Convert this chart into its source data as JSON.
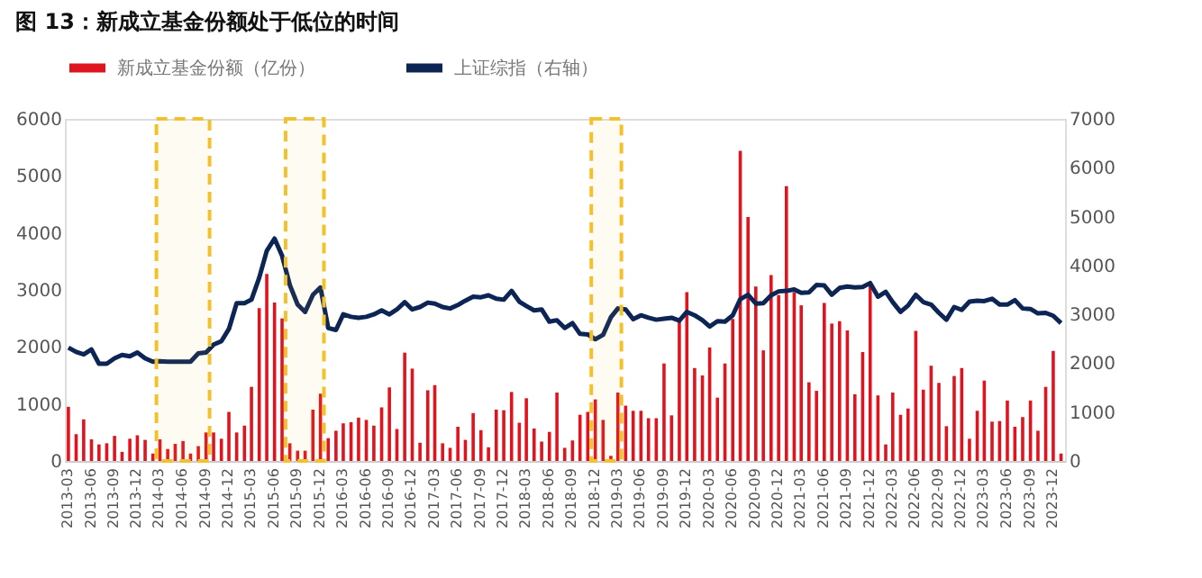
{
  "chart_data": {
    "type": "bar",
    "title": "图 13：新成立基金份额处于低位的时间",
    "x": [
      "2013-03",
      "2013-04",
      "2013-05",
      "2013-06",
      "2013-07",
      "2013-08",
      "2013-09",
      "2013-10",
      "2013-11",
      "2013-12",
      "2014-01",
      "2014-02",
      "2014-03",
      "2014-04",
      "2014-05",
      "2014-06",
      "2014-07",
      "2014-08",
      "2014-09",
      "2014-10",
      "2014-11",
      "2014-12",
      "2015-01",
      "2015-02",
      "2015-03",
      "2015-04",
      "2015-05",
      "2015-06",
      "2015-07",
      "2015-08",
      "2015-09",
      "2015-10",
      "2015-11",
      "2015-12",
      "2016-01",
      "2016-02",
      "2016-03",
      "2016-04",
      "2016-05",
      "2016-06",
      "2016-07",
      "2016-08",
      "2016-09",
      "2016-10",
      "2016-11",
      "2016-12",
      "2017-01",
      "2017-02",
      "2017-03",
      "2017-04",
      "2017-05",
      "2017-06",
      "2017-07",
      "2017-08",
      "2017-09",
      "2017-10",
      "2017-11",
      "2017-12",
      "2018-01",
      "2018-02",
      "2018-03",
      "2018-04",
      "2018-05",
      "2018-06",
      "2018-07",
      "2018-08",
      "2018-09",
      "2018-10",
      "2018-11",
      "2018-12",
      "2019-01",
      "2019-02",
      "2019-03",
      "2019-04",
      "2019-05",
      "2019-06",
      "2019-07",
      "2019-08",
      "2019-09",
      "2019-10",
      "2019-11",
      "2019-12",
      "2020-01",
      "2020-02",
      "2020-03",
      "2020-04",
      "2020-05",
      "2020-06",
      "2020-07",
      "2020-08",
      "2020-09",
      "2020-10",
      "2020-11",
      "2020-12",
      "2021-01",
      "2021-02",
      "2021-03",
      "2021-04",
      "2021-05",
      "2021-06",
      "2021-07",
      "2021-08",
      "2021-09",
      "2021-10",
      "2021-11",
      "2021-12",
      "2022-01",
      "2022-02",
      "2022-03",
      "2022-04",
      "2022-05",
      "2022-06",
      "2022-07",
      "2022-08",
      "2022-09",
      "2022-10",
      "2022-11",
      "2022-12",
      "2023-01",
      "2023-02",
      "2023-03",
      "2023-04",
      "2023-05",
      "2023-06",
      "2023-07",
      "2023-08",
      "2023-09",
      "2023-10",
      "2023-11",
      "2023-12",
      "2024-01"
    ],
    "series": [
      {
        "name": "新成立基金份额（亿份）",
        "color": "#e0141e",
        "values": [
          950,
          470,
          730,
          380,
          290,
          310,
          440,
          160,
          390,
          450,
          370,
          130,
          380,
          210,
          300,
          350,
          130,
          260,
          500,
          500,
          390,
          860,
          500,
          620,
          1300,
          2680,
          3280,
          2780,
          2500,
          310,
          180,
          180,
          900,
          1180,
          400,
          530,
          660,
          680,
          760,
          720,
          620,
          940,
          1290,
          560,
          1900,
          1620,
          320,
          1240,
          1330,
          310,
          230,
          600,
          370,
          840,
          540,
          240,
          900,
          890,
          1210,
          670,
          1100,
          570,
          340,
          510,
          1200,
          230,
          360,
          810,
          860,
          1080,
          720,
          90,
          1200,
          970,
          880,
          880,
          750,
          750,
          1710,
          800,
          2490,
          2960,
          1630,
          1500,
          1990,
          1110,
          1710,
          2490,
          5440,
          4280,
          3060,
          1940,
          3260,
          2910,
          4820,
          2960,
          2730,
          1380,
          1230,
          2770,
          2410,
          2450,
          2290,
          1170,
          1910,
          3140,
          1150,
          290,
          1200,
          810,
          920,
          2280,
          1250,
          1670,
          1370,
          610,
          1490,
          1630,
          390,
          880,
          1410,
          690,
          700,
          1060,
          600,
          770,
          1060,
          530,
          1300,
          1930,
          130
        ]
      },
      {
        "name": "上证综指（右轴）",
        "type": "line",
        "axis": "y2",
        "color": "#0d2554",
        "values": [
          2320,
          2230,
          2180,
          2280,
          1990,
          1990,
          2100,
          2170,
          2140,
          2220,
          2100,
          2030,
          2040,
          2030,
          2030,
          2030,
          2030,
          2200,
          2220,
          2380,
          2450,
          2700,
          3230,
          3230,
          3300,
          3750,
          4300,
          4550,
          4200,
          3600,
          3200,
          3050,
          3400,
          3550,
          2720,
          2680,
          3000,
          2950,
          2930,
          2950,
          3000,
          3080,
          3000,
          3100,
          3250,
          3100,
          3150,
          3240,
          3220,
          3150,
          3120,
          3190,
          3280,
          3360,
          3350,
          3390,
          3320,
          3300,
          3480,
          3260,
          3170,
          3080,
          3100,
          2850,
          2880,
          2720,
          2820,
          2600,
          2590,
          2490,
          2580,
          2940,
          3120,
          3100,
          2900,
          2980,
          2930,
          2890,
          2910,
          2930,
          2870,
          3050,
          2980,
          2880,
          2750,
          2860,
          2850,
          2980,
          3310,
          3400,
          3220,
          3230,
          3390,
          3470,
          3480,
          3510,
          3440,
          3450,
          3600,
          3590,
          3400,
          3540,
          3570,
          3550,
          3560,
          3640,
          3360,
          3460,
          3250,
          3050,
          3180,
          3400,
          3250,
          3200,
          3030,
          2890,
          3150,
          3090,
          3260,
          3280,
          3270,
          3320,
          3200,
          3200,
          3290,
          3120,
          3110,
          3020,
          3030,
          2970,
          2820
        ]
      }
    ],
    "xlim": [
      "2013-02-15",
      "2024-01-17"
    ],
    "xticks": [
      "2013-03",
      "2013-06",
      "2013-09",
      "2013-12",
      "2014-03",
      "2014-06",
      "2014-09",
      "2014-12",
      "2015-03",
      "2015-06",
      "2015-09",
      "2015-12",
      "2016-03",
      "2016-06",
      "2016-09",
      "2016-12",
      "2017-03",
      "2017-06",
      "2017-09",
      "2017-12",
      "2018-03",
      "2018-06",
      "2018-09",
      "2018-12",
      "2019-03",
      "2019-06",
      "2019-09",
      "2019-12",
      "2020-03",
      "2020-06",
      "2020-09",
      "2020-12",
      "2021-03",
      "2021-06",
      "2021-09",
      "2021-12",
      "2022-03",
      "2022-06",
      "2022-09",
      "2022-12",
      "2023-03",
      "2023-06",
      "2023-09",
      "2023-12"
    ],
    "ylim": [
      0,
      6000
    ],
    "yticks": [
      0,
      1000,
      2000,
      3000,
      4000,
      5000,
      6000
    ],
    "y2lim": [
      0,
      7000
    ],
    "y2ticks": [
      0,
      1000,
      2000,
      3000,
      4000,
      5000,
      6000,
      7000
    ],
    "bands": [
      {
        "axis": "x",
        "from": "2014-02-15",
        "to": "2014-09-15",
        "color": "#f2c12e"
      },
      {
        "axis": "x",
        "from": "2015-07-15",
        "to": "2015-12-15",
        "color": "#f2c12e"
      },
      {
        "axis": "x",
        "from": "2018-11-15",
        "to": "2019-03-15",
        "color": "#f2c12e"
      }
    ],
    "grid": false,
    "legend": "top",
    "marker": "none",
    "line_style": "solid"
  }
}
